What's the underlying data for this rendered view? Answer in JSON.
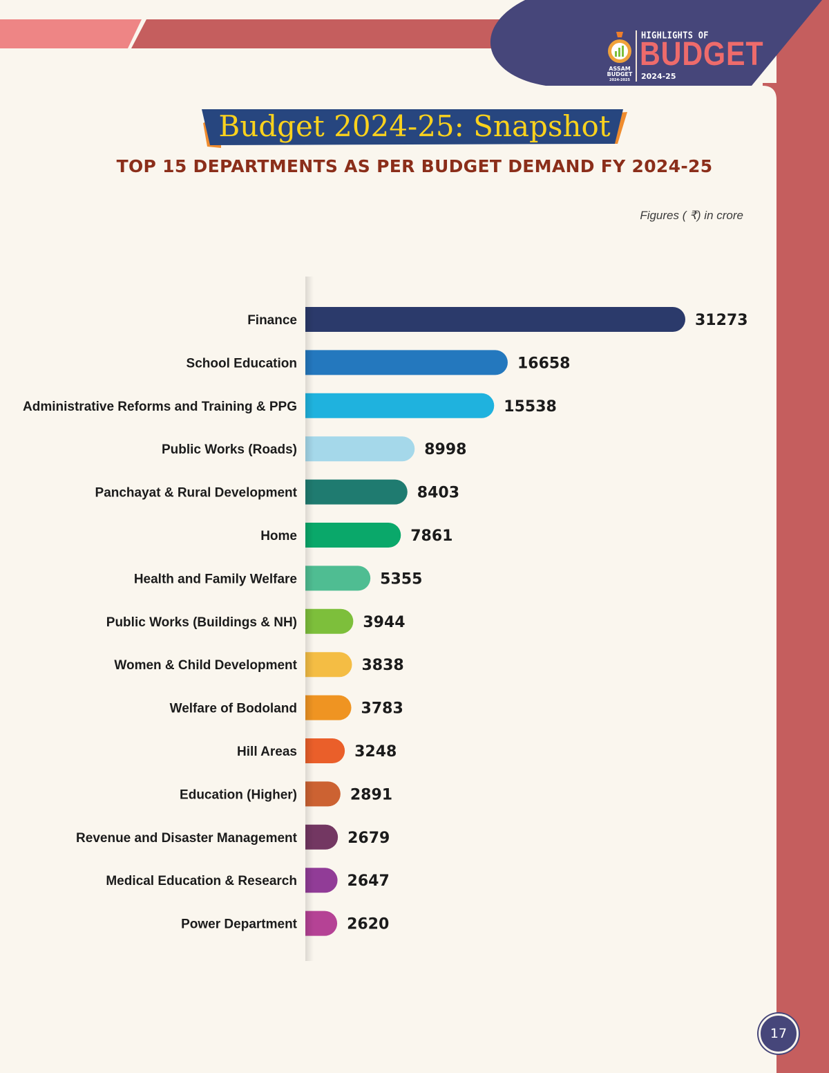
{
  "header": {
    "logo": {
      "label_top": "ASSAM",
      "label_mid": "BUDGET",
      "label_year": "2024-2025",
      "highlights_of": "HIGHLIGHTS OF",
      "budget": "BUDGET",
      "year": "2024-25"
    }
  },
  "title": "Budget 2024-25: Snapshot",
  "subtitle": "TOP 15 DEPARTMENTS AS PER BUDGET DEMAND FY 2024-25",
  "units_note": "Figures ( ₹) in crore",
  "page_number": "17",
  "colors": {
    "navy": "#46467a",
    "coral": "#c55e5e",
    "title_yellow": "#fbd21d",
    "subtitle_brown": "#8b2e1a"
  },
  "chart_data": {
    "type": "bar",
    "orientation": "horizontal",
    "categories": [
      "Finance",
      "School Education",
      "Administrative Reforms and Training & PPG",
      "Public Works (Roads)",
      "Panchayat & Rural Development",
      "Home",
      "Health and Family Welfare",
      "Public Works (Buildings & NH)",
      "Women & Child Development",
      "Welfare of Bodoland",
      "Hill Areas",
      "Education (Higher)",
      "Revenue and Disaster Management",
      "Medical Education & Research",
      "Power Department"
    ],
    "values": [
      31273,
      16658,
      15538,
      8998,
      8403,
      7861,
      5355,
      3944,
      3838,
      3783,
      3248,
      2891,
      2679,
      2647,
      2620
    ],
    "value_labels": [
      "31273",
      "16658",
      "15538",
      "8998",
      "8403",
      "7861",
      "5355",
      "3944",
      "3838",
      "3783",
      "3248",
      "2891",
      "2679",
      "2647",
      "2620"
    ],
    "bar_colors": [
      "#2b3a6b",
      "#2478be",
      "#1fb2de",
      "#a5d8ea",
      "#1f7b70",
      "#0aa86a",
      "#4fbd92",
      "#7dbf3b",
      "#f4bd44",
      "#ef9422",
      "#ea5f2a",
      "#cc6232",
      "#733762",
      "#913c97",
      "#b54295"
    ],
    "grid": false
  }
}
